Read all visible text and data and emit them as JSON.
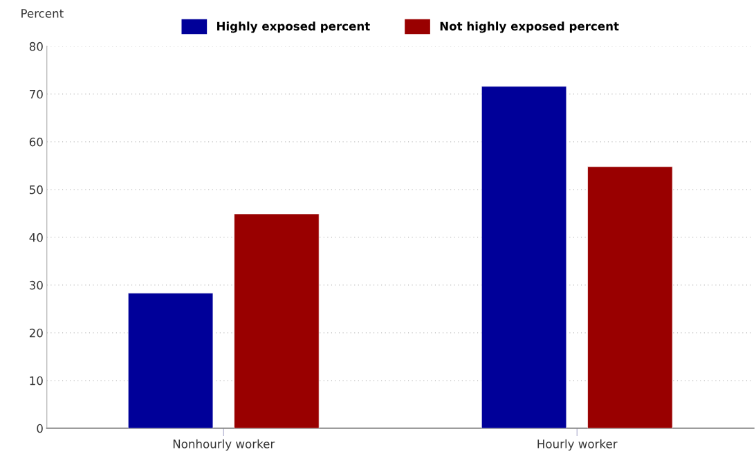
{
  "chart_data": {
    "type": "bar",
    "ylabel": "Percent",
    "categories": [
      "Nonhourly worker",
      "Hourly worker"
    ],
    "series": [
      {
        "name": "Highly exposed percent",
        "color": "#000099",
        "values": [
          28.3,
          71.6
        ]
      },
      {
        "name": "Not highly exposed percent",
        "color": "#990000",
        "values": [
          44.9,
          54.8
        ]
      }
    ],
    "ylim": [
      0,
      80
    ],
    "yticks": [
      0,
      10,
      20,
      30,
      40,
      50,
      60,
      70,
      80
    ],
    "grid": "y",
    "legend": "top"
  }
}
